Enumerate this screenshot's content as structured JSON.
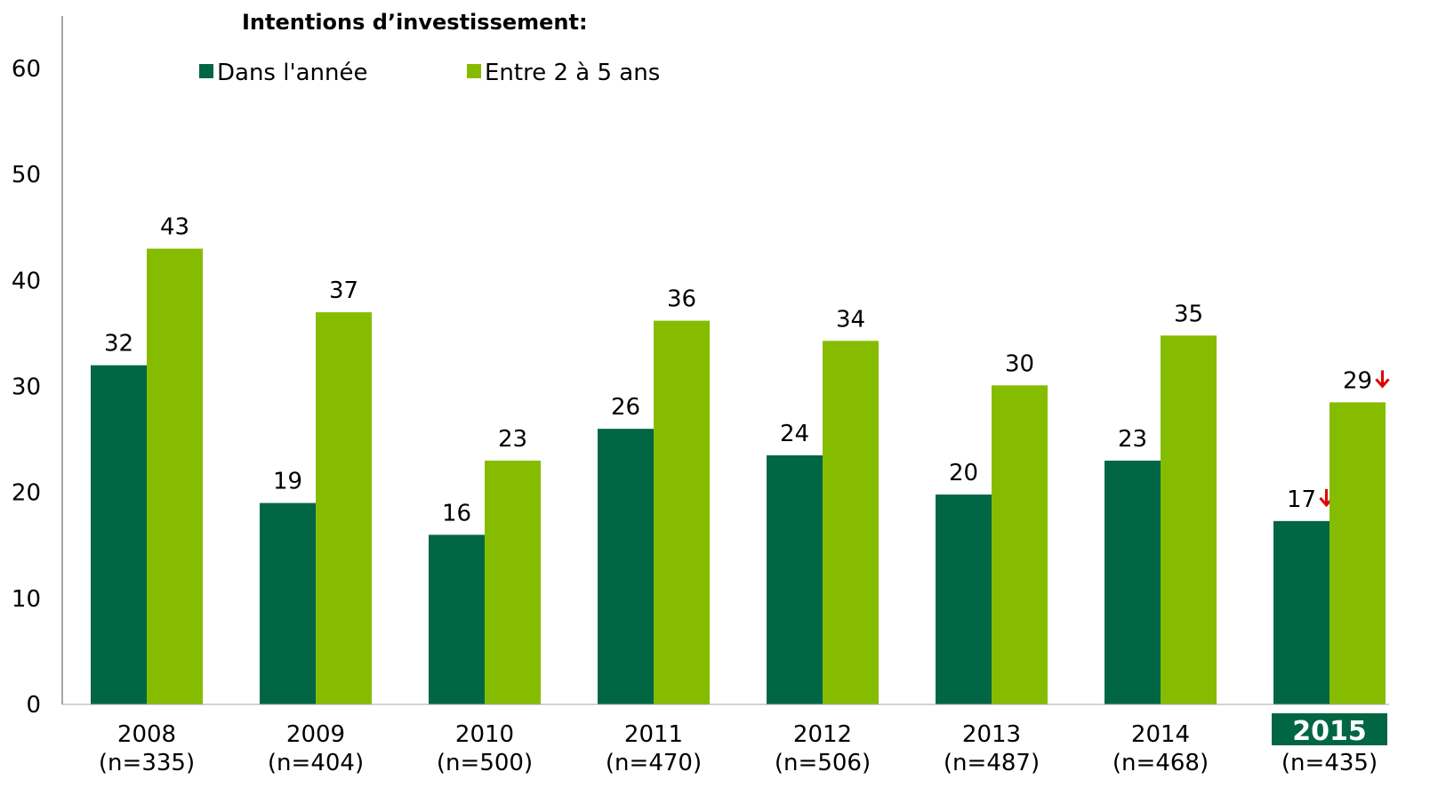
{
  "chart_data": {
    "type": "bar",
    "title": "Intentions d’investissement:",
    "categories": [
      "2008",
      "2009",
      "2010",
      "2011",
      "2012",
      "2013",
      "2014",
      "2015"
    ],
    "category_sublabels": [
      "(n=335)",
      "(n=404)",
      "(n=500)",
      "(n=470)",
      "(n=506)",
      "(n=487)",
      "(n=468)",
      "(n=435)"
    ],
    "highlight_category": "2015",
    "series": [
      {
        "name": "Dans l'année",
        "color": "#006643",
        "values": [
          32,
          19,
          16,
          26,
          23.5,
          19.8,
          23,
          17.3
        ],
        "labels": [
          "32",
          "19",
          "16",
          "26",
          "24",
          "20",
          "23",
          "17"
        ],
        "decrease_markers": [
          false,
          false,
          false,
          false,
          false,
          false,
          false,
          true
        ]
      },
      {
        "name": "Entre 2 à 5 ans",
        "color": "#86BC00",
        "values": [
          43,
          37,
          23,
          36.2,
          34.3,
          30.1,
          34.8,
          28.5
        ],
        "labels": [
          "43",
          "37",
          "23",
          "36",
          "34",
          "30",
          "35",
          "29"
        ],
        "decrease_markers": [
          false,
          false,
          false,
          false,
          false,
          false,
          false,
          true
        ]
      }
    ],
    "yticks": [
      0,
      10,
      20,
      30,
      40,
      50,
      60
    ],
    "ylim": [
      0,
      60
    ],
    "xlabel": "",
    "ylabel": "",
    "grid": false,
    "legend_position": "top",
    "decrease_marker_color": "#E00000"
  }
}
